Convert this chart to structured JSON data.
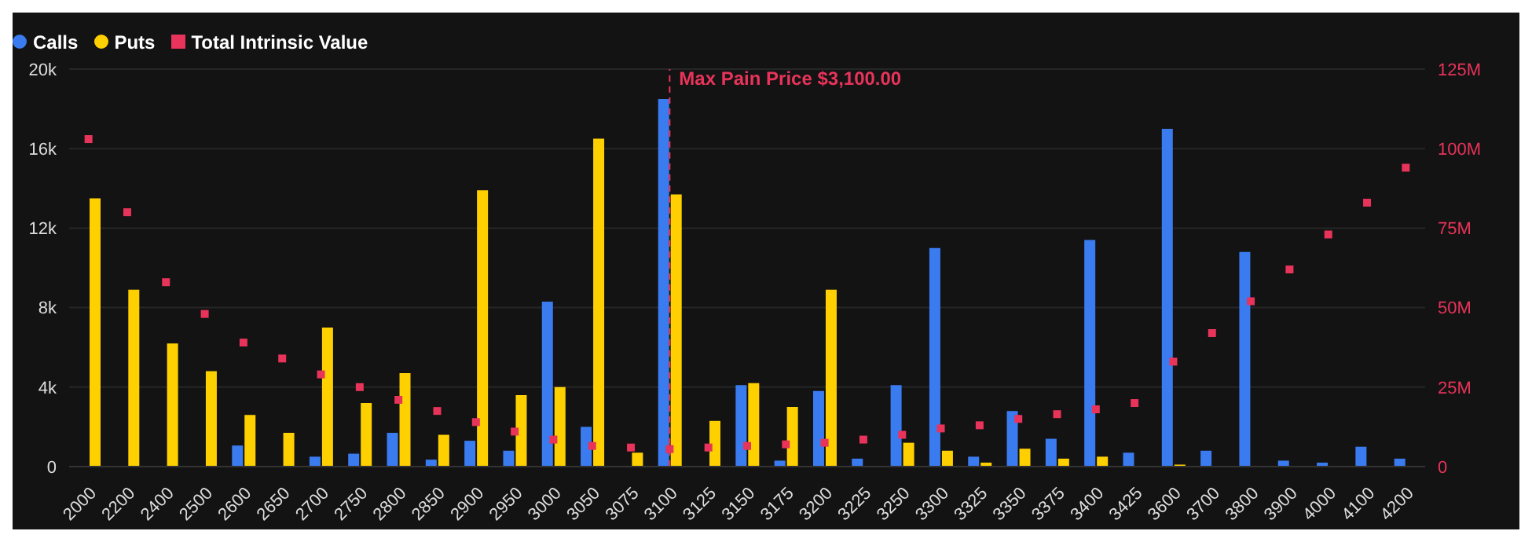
{
  "chart_data": {
    "type": "bar",
    "categories": [
      "2000",
      "2200",
      "2400",
      "2500",
      "2600",
      "2650",
      "2700",
      "2750",
      "2800",
      "2850",
      "2900",
      "2950",
      "3000",
      "3050",
      "3075",
      "3100",
      "3125",
      "3150",
      "3175",
      "3200",
      "3225",
      "3250",
      "3300",
      "3325",
      "3350",
      "3375",
      "3400",
      "3425",
      "3600",
      "3700",
      "3800",
      "3900",
      "4000",
      "4100",
      "4200"
    ],
    "series": [
      {
        "name": "Calls",
        "color": "#3b7bf0",
        "values": [
          0,
          0,
          0,
          0,
          1060,
          0,
          500,
          650,
          1700,
          350,
          1300,
          800,
          8300,
          2000,
          0,
          18500,
          0,
          4100,
          300,
          3800,
          400,
          4100,
          11000,
          500,
          2800,
          1400,
          11400,
          700,
          17000,
          800,
          10800,
          300,
          200,
          1000,
          400
        ]
      },
      {
        "name": "Puts",
        "color": "#ffd000",
        "values": [
          13500,
          8900,
          6200,
          4800,
          2600,
          1700,
          7000,
          3200,
          4700,
          1600,
          13900,
          3600,
          4000,
          16500,
          700,
          13700,
          2300,
          4200,
          3000,
          8900,
          0,
          1200,
          800,
          200,
          900,
          400,
          500,
          0,
          100,
          0,
          0,
          0,
          0,
          0,
          0
        ]
      },
      {
        "name": "Total Intrinsic Value",
        "type": "scatter",
        "axis": "y2",
        "color": "#e8335a",
        "marker": "square",
        "values": [
          103000000,
          80000000,
          58000000,
          48000000,
          39000000,
          34000000,
          29000000,
          25000000,
          21000000,
          17500000,
          14000000,
          11000000,
          8500000,
          6500000,
          6000000,
          5500000,
          6000000,
          6500000,
          7000000,
          7500000,
          8500000,
          10000000,
          12000000,
          13000000,
          15000000,
          16500000,
          18000000,
          20000000,
          33000000,
          42000000,
          52000000,
          62000000,
          73000000,
          83000000,
          94000000
        ]
      }
    ],
    "ylim": [
      0,
      20000
    ],
    "yticks": [
      0,
      {
        "value": 4000,
        "label": "4k"
      },
      {
        "value": 8000,
        "label": "8k"
      },
      {
        "value": 12000,
        "label": "12k"
      },
      {
        "value": 16000,
        "label": "16k"
      },
      {
        "value": 20000,
        "label": "20k"
      }
    ],
    "y2lim": [
      0,
      125000000
    ],
    "y2ticks": [
      0,
      {
        "value": 25000000,
        "label": "25M"
      },
      {
        "value": 50000000,
        "label": "50M"
      },
      {
        "value": 75000000,
        "label": "75M"
      },
      {
        "value": 100000000,
        "label": "100M"
      },
      {
        "value": 125000000,
        "label": "125M"
      }
    ],
    "ref_lines": [
      {
        "axis": "x",
        "value": "3100",
        "label": "Max Pain Price $3,100.00",
        "color": "#e8335a",
        "line_style": "dashed"
      }
    ],
    "grid": "y",
    "legend": "top left"
  }
}
